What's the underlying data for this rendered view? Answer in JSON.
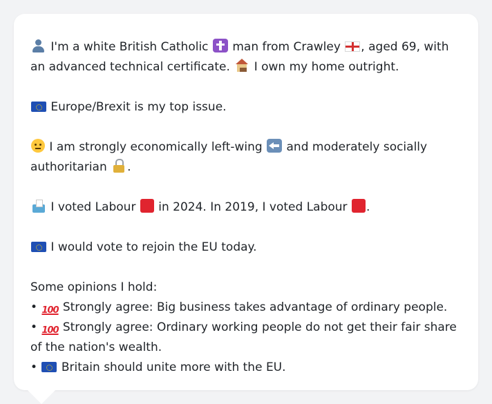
{
  "profile": {
    "intro_part1": "I'm a white British Catholic",
    "intro_part2": "man from Crawley",
    "intro_part3": ", aged 69, with an advanced technical certificate.",
    "intro_part4": "I own my home outright.",
    "top_issue": "Europe/Brexit is my top issue.",
    "ideology_part1": "I am strongly economically left-wing",
    "ideology_part2": "and moderately socially authoritarian",
    "ideology_part3": ".",
    "vote_part1": "I voted Labour",
    "vote_part2": "in 2024. In 2019, I voted Labour",
    "vote_part3": ".",
    "eu_vote": "I would vote to rejoin the EU today.",
    "opinions_heading": "Some opinions I hold:",
    "bullet": "•",
    "opinions": [
      {
        "icon": "hundred-points-icon",
        "text": "Strongly agree: Big business takes advantage of ordinary people."
      },
      {
        "icon": "hundred-points-icon",
        "text": "Strongly agree: Ordinary working people do not get their fair share of the nation's wealth."
      },
      {
        "icon": "eu-flag-icon",
        "text": "Britain should unite more with the EU."
      }
    ],
    "hundred_glyph": "100"
  },
  "colors": {
    "background": "#f2f3f5",
    "bubble": "#ffffff",
    "text": "#1f2328",
    "eu_blue": "#1f4fb4",
    "labour_red": "#e0242f"
  }
}
